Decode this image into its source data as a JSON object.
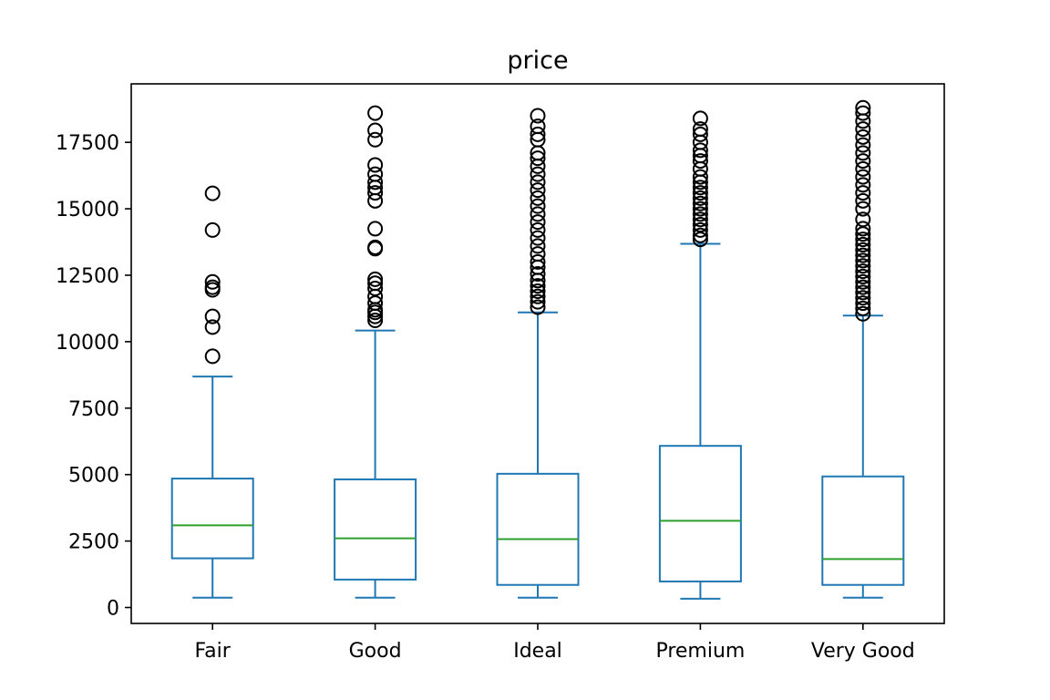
{
  "chart_data": {
    "type": "box",
    "title": "price",
    "xlabel": "",
    "ylabel": "",
    "ylim": [
      -600,
      19700
    ],
    "yticks": [
      0,
      2500,
      5000,
      7500,
      10000,
      12500,
      15000,
      17500
    ],
    "ytick_labels": [
      "0",
      "2500",
      "5000",
      "7500",
      "10000",
      "12500",
      "15000",
      "17500"
    ],
    "grid": false,
    "legend": "none",
    "colors": {
      "box": "#1f77b4",
      "median": "#2ca02c",
      "flier": "#000000"
    },
    "categories": [
      "Fair",
      "Good",
      "Ideal",
      "Premium",
      "Very Good"
    ],
    "boxes": [
      {
        "category": "Fair",
        "whisker_low": 370,
        "q1": 1850,
        "median": 3090,
        "q3": 4850,
        "whisker_high": 8690,
        "outliers": [
          9450,
          10550,
          10950,
          11950,
          12050,
          12250,
          14200,
          15580
        ]
      },
      {
        "category": "Good",
        "whisker_low": 370,
        "q1": 1050,
        "median": 2600,
        "q3": 4820,
        "whisker_high": 10420,
        "outliers": [
          10800,
          10950,
          11100,
          11200,
          11450,
          11700,
          12000,
          12200,
          12350,
          13500,
          13550,
          14250,
          15300,
          15600,
          15800,
          16000,
          16300,
          16650,
          17600,
          17950,
          18600
        ]
      },
      {
        "category": "Ideal",
        "whisker_low": 370,
        "q1": 850,
        "median": 2570,
        "q3": 5030,
        "whisker_high": 11100,
        "outliers": [
          11300,
          11500,
          11700,
          11900,
          12100,
          12300,
          12550,
          12800,
          13000,
          13300,
          13600,
          13900,
          14200,
          14500,
          14800,
          15100,
          15400,
          15700,
          16000,
          16300,
          16600,
          16900,
          17100,
          17600,
          17800,
          18100,
          18500
        ]
      },
      {
        "category": "Premium",
        "whisker_low": 330,
        "q1": 980,
        "median": 3260,
        "q3": 6080,
        "whisker_high": 13680,
        "outliers": [
          13850,
          14000,
          14200,
          14400,
          14600,
          14800,
          15000,
          15200,
          15400,
          15600,
          15800,
          16000,
          16200,
          16500,
          16800,
          17000,
          17200,
          17500,
          17800,
          18000,
          18400
        ]
      },
      {
        "category": "Very Good",
        "whisker_low": 370,
        "q1": 850,
        "median": 1820,
        "q3": 4930,
        "whisker_high": 10980,
        "outliers": [
          11050,
          11250,
          11450,
          11650,
          11850,
          12050,
          12250,
          12450,
          12650,
          12850,
          13050,
          13250,
          13450,
          13650,
          13850,
          14050,
          14250,
          14600,
          15000,
          15300,
          15600,
          15900,
          16200,
          16500,
          16800,
          17100,
          17400,
          17700,
          18000,
          18300,
          18600,
          18800
        ]
      }
    ]
  }
}
